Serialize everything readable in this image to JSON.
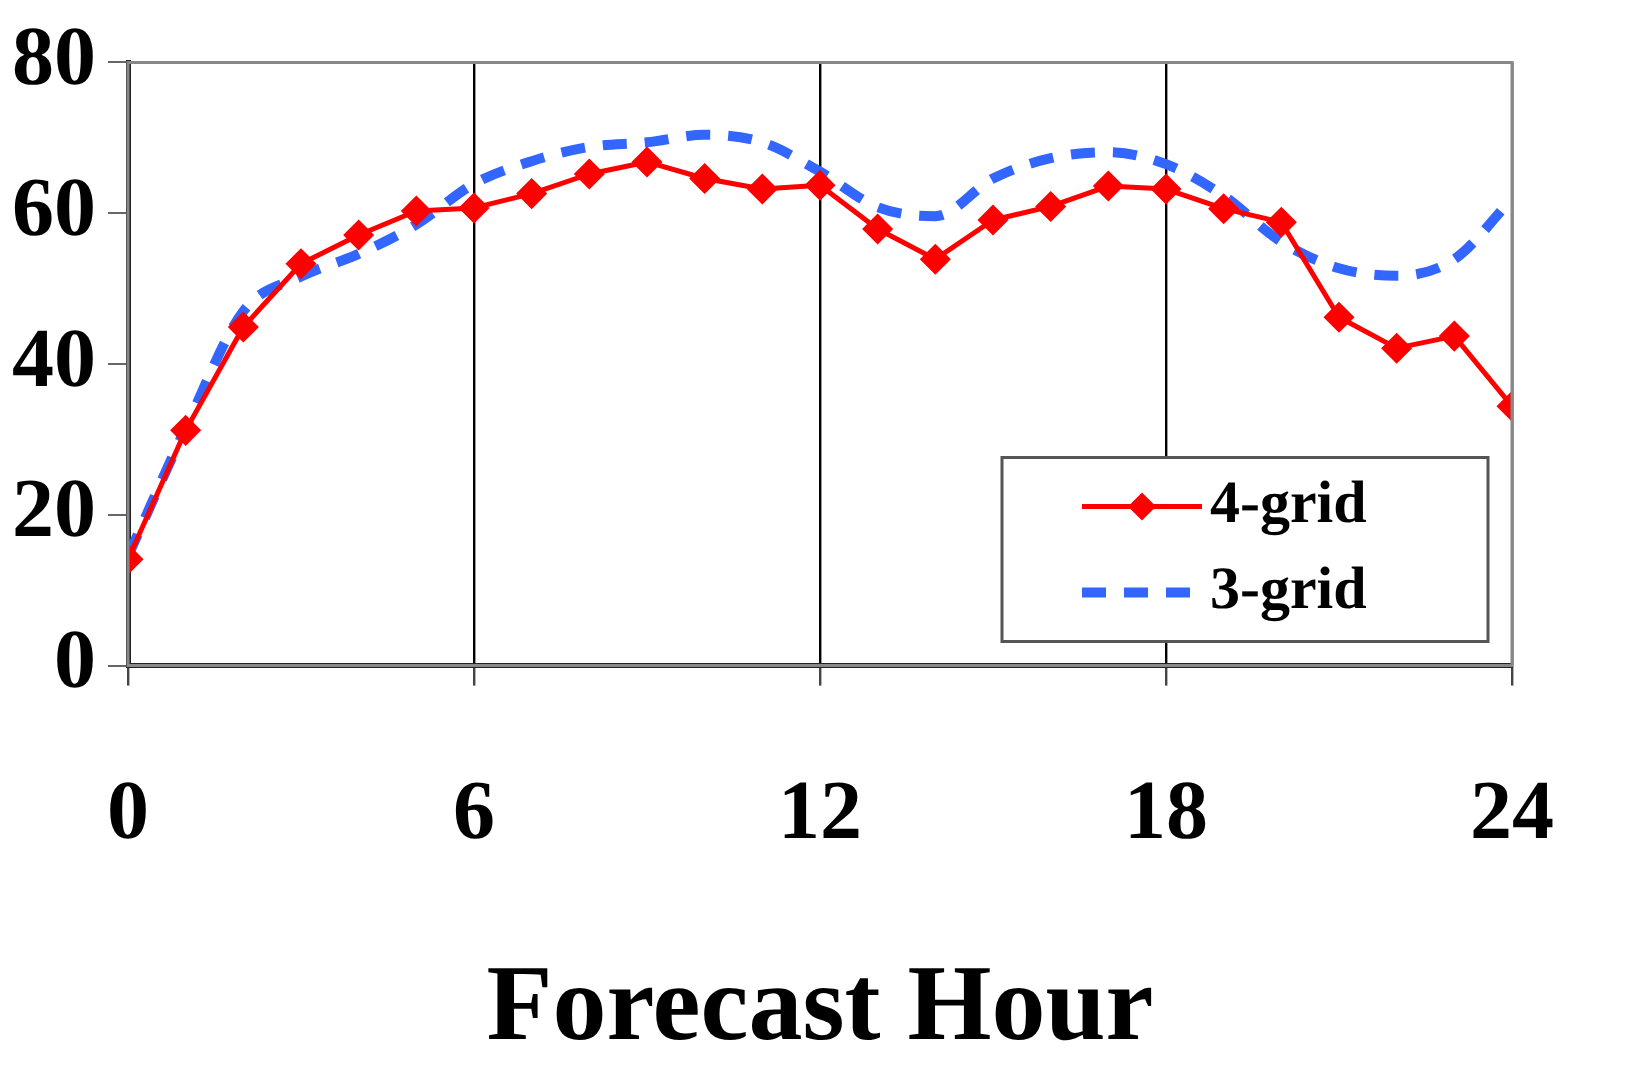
{
  "chart_data": {
    "type": "line",
    "xlabel": "Forecast Hour",
    "xlim": [
      0,
      24
    ],
    "xticks": [
      0,
      6,
      12,
      18,
      24
    ],
    "ylim": [
      0,
      80
    ],
    "yticks": [
      0,
      20,
      40,
      60,
      80
    ],
    "grid": "x",
    "legend": "bottom right",
    "series": [
      {
        "name": "4-grid",
        "color": "#ff0000",
        "marker": "diamond",
        "line_style": "solid",
        "x": [
          0,
          1,
          2,
          3,
          4,
          5,
          6,
          7,
          8,
          9,
          10,
          11,
          12,
          13,
          14,
          15,
          16,
          17,
          18,
          19,
          20,
          21,
          22,
          23,
          24
        ],
        "values": [
          14.1,
          31.2,
          44.9,
          53.3,
          57.1,
          60.3,
          60.7,
          62.6,
          65.2,
          66.8,
          64.6,
          63.2,
          63.7,
          57.9,
          53.9,
          59.1,
          60.9,
          63.6,
          63.2,
          60.6,
          58.8,
          46.2,
          42.1,
          43.7,
          34.4
        ]
      },
      {
        "name": "3-grid",
        "color": "#3366ff",
        "marker": "none",
        "line_style": "dashed",
        "x": [
          0,
          1,
          2,
          3,
          4,
          5,
          6,
          7,
          8,
          9,
          10,
          11,
          12,
          13,
          14,
          15,
          16,
          17,
          18,
          19,
          20,
          21,
          22,
          23,
          24
        ],
        "values": [
          14.5,
          31.5,
          47,
          51.6,
          54.6,
          58.5,
          63.9,
          66.9,
          68.8,
          69.4,
          70.4,
          69.4,
          65.5,
          60.8,
          59.6,
          64.6,
          67.3,
          68.1,
          66.5,
          62.3,
          56.2,
          52.7,
          51.7,
          53.9,
          61.9
        ]
      }
    ]
  }
}
